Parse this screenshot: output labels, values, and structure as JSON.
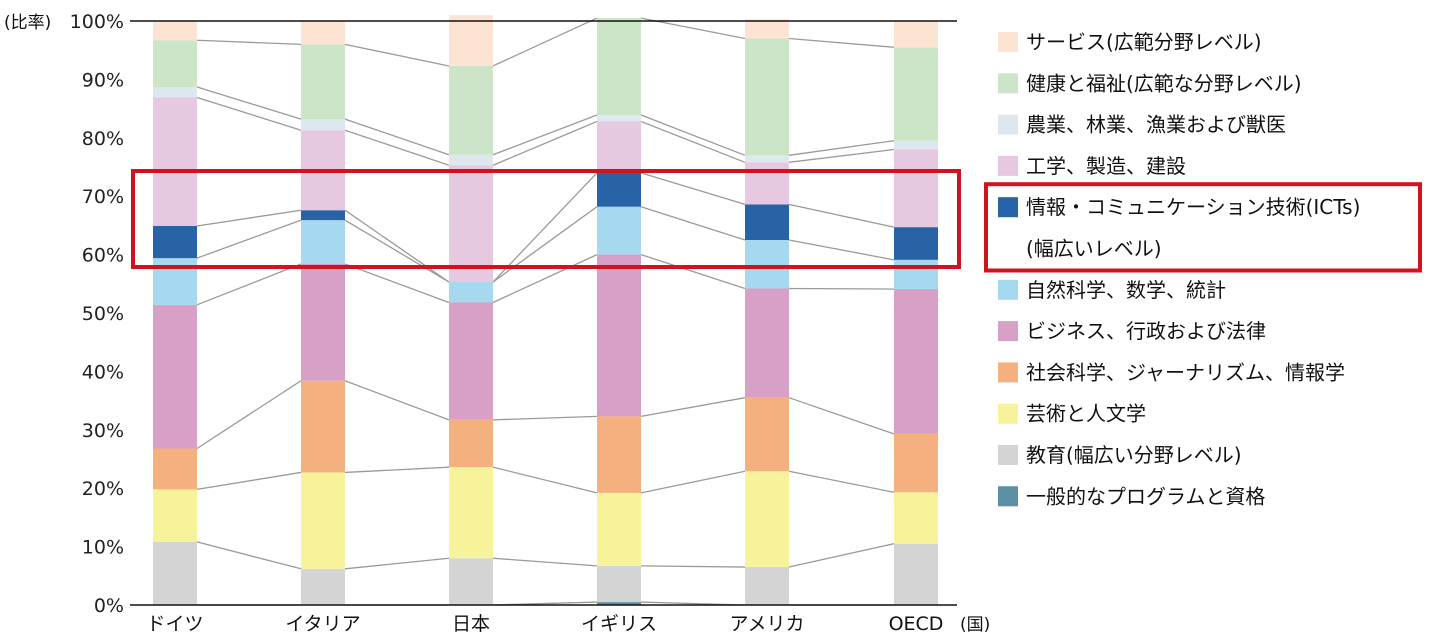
{
  "chart_data": {
    "type": "bar",
    "stacked": true,
    "y_unit_label": "(比率)",
    "x_unit_label": "(国)",
    "ylim": [
      0,
      100
    ],
    "y_ticks": [
      "0%",
      "10%",
      "20%",
      "30%",
      "40%",
      "50%",
      "60%",
      "70%",
      "80%",
      "90%",
      "100%"
    ],
    "categories": [
      "ドイツ",
      "イタリア",
      "日本",
      "イギリス",
      "アメリカ",
      "OECD"
    ],
    "series": [
      {
        "name": "一般的なプログラムと資格",
        "color": "#5b8fa3",
        "values": [
          0,
          0,
          0,
          0.5,
          0,
          0
        ]
      },
      {
        "name": "教育(幅広い分野レベル)",
        "color": "#d4d4d4",
        "values": [
          10.8,
          6.2,
          8,
          6.2,
          6.5,
          10.5
        ]
      },
      {
        "name": "芸術と人文学",
        "color": "#f6f39a",
        "values": [
          9,
          16.5,
          15.6,
          12.5,
          16.4,
          8.8
        ]
      },
      {
        "name": "社会科学、ジャーナリズム、情報学",
        "color": "#f5b07f",
        "values": [
          7,
          15.7,
          8.1,
          13.1,
          12.6,
          10
        ]
      },
      {
        "name": "ビジネス、行政および法律",
        "color": "#d9a0c7",
        "values": [
          24.6,
          20,
          20.1,
          27.7,
          18.7,
          24.8
        ]
      },
      {
        "name": "自然科学、数学、統計",
        "color": "#a6d8f0",
        "values": [
          8,
          7.5,
          3.5,
          8.2,
          8.3,
          5
        ]
      },
      {
        "name": "情報・コミュニケーション技術(ICTs)(幅広いレベル)",
        "color": "#2863a6",
        "values": [
          5.5,
          1.7,
          0,
          5.8,
          6.1,
          5.6
        ]
      },
      {
        "name": "工学、製造、建設",
        "color": "#e6c8e1",
        "values": [
          22,
          13.7,
          20,
          8.8,
          7.2,
          13.3
        ]
      },
      {
        "name": "農業、林業、漁業および獣医",
        "color": "#dde7ee",
        "values": [
          1.8,
          1.9,
          1.8,
          1.1,
          1.2,
          1.5
        ]
      },
      {
        "name": "健康と福祉(広範な分野レベル)",
        "color": "#cce5c8",
        "values": [
          8,
          12.8,
          15.2,
          16.6,
          20,
          16
        ]
      },
      {
        "name": "サービス(広範分野レベル)",
        "color": "#fde3d2",
        "values": [
          3.3,
          4,
          8.7,
          0,
          3.3,
          4.5
        ]
      }
    ],
    "legend": {
      "position": "right",
      "lines": [
        {
          "text": "サービス(広範分野レベル)",
          "series": 10
        },
        {
          "text": "健康と福祉(広範な分野レベル)",
          "series": 9
        },
        {
          "text": "農業、林業、漁業および獣医",
          "series": 8
        },
        {
          "text": "工学、製造、建設",
          "series": 7
        },
        {
          "text": "情報・コミュニケーション技術(ICTs)",
          "series": 6
        },
        {
          "text": "(幅広いレベル)",
          "series": null
        },
        {
          "text": "自然科学、数学、統計",
          "series": 5
        },
        {
          "text": "ビジネス、行政および法律",
          "series": 4
        },
        {
          "text": "社会科学、ジャーナリズム、情報学",
          "series": 3
        },
        {
          "text": "芸術と人文学",
          "series": 2
        },
        {
          "text": "教育(幅広い分野レベル)",
          "series": 1
        },
        {
          "text": "一般的なプログラムと資格",
          "series": 0
        }
      ]
    },
    "highlight": {
      "series": "情報・コミュニケーション技術(ICTs)(幅広いレベル)",
      "color": "#d0141e"
    },
    "connector_color": "#9a9a9a",
    "grid": false
  }
}
